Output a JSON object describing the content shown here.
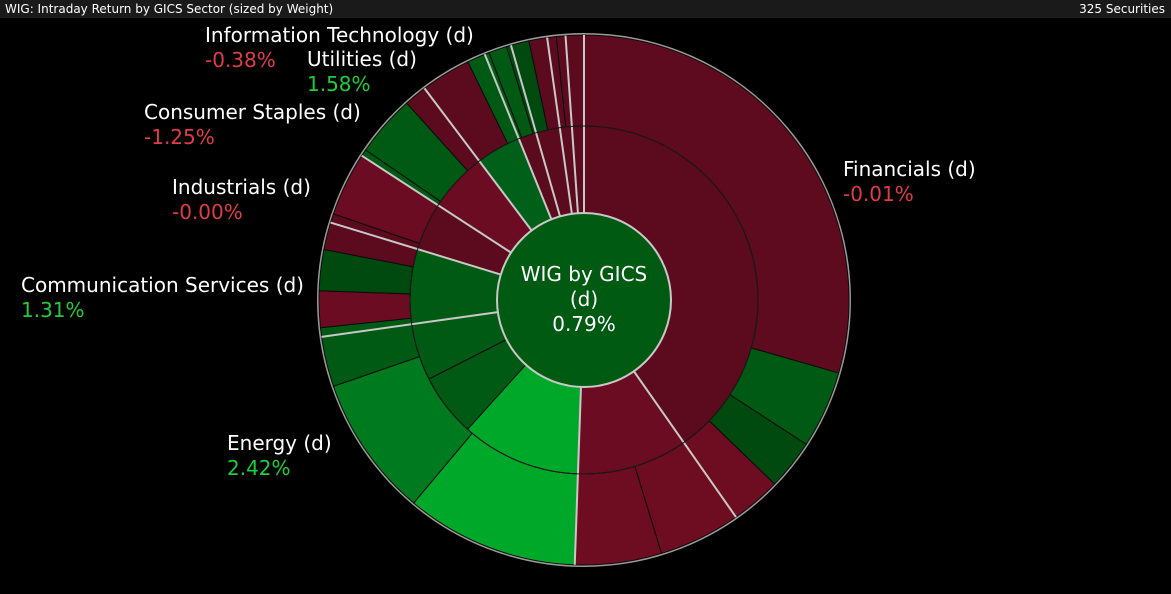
{
  "header": {
    "title": "WIG: Intraday Return by GICS Sector (sized by Weight)",
    "count": "325 Securities"
  },
  "chart_data": {
    "type": "sunburst",
    "center": {
      "title_line1": "WIG by GICS",
      "title_line2": "(d)",
      "value": "0.79%"
    },
    "colors": {
      "positive": "#1ccf3a",
      "negative": "#e03c48",
      "bg": "#000000",
      "separator": "#c8c8c8"
    },
    "sectors": [
      {
        "name": "Financials (d)",
        "value": "-0.01%",
        "sign": "negative"
      },
      {
        "name": "Energy (d)",
        "value": "2.42%",
        "sign": "positive"
      },
      {
        "name": "Communication Services (d)",
        "value": "1.31%",
        "sign": "positive"
      },
      {
        "name": "Industrials (d)",
        "value": "-0.00%",
        "sign": "negative"
      },
      {
        "name": "Consumer Staples (d)",
        "value": "-1.25%",
        "sign": "negative"
      },
      {
        "name": "Utilities (d)",
        "value": "1.58%",
        "sign": "positive"
      },
      {
        "name": "Information Technology (d)",
        "value": "-0.38%",
        "sign": "negative"
      }
    ]
  }
}
